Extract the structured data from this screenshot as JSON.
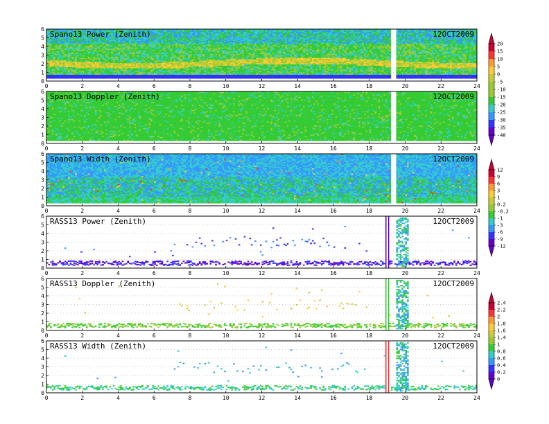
{
  "date_label": "12OCT2009",
  "x_ticks": [
    "0",
    "2",
    "4",
    "6",
    "8",
    "10",
    "12",
    "14",
    "16",
    "18",
    "20",
    "22",
    "24"
  ],
  "y_ticks": [
    "0",
    "1",
    "2",
    "3",
    "4",
    "5",
    "6"
  ],
  "colorbars": [
    {
      "ticks": [
        "20",
        "15",
        "10",
        "5",
        "0",
        "-5",
        "-10",
        "-15",
        "-20",
        "-25",
        "-30",
        "-35",
        "-40"
      ]
    },
    {
      "ticks": [
        "12",
        "9",
        "6",
        "3",
        "1",
        "0.2",
        "-0.2",
        "-1",
        "-3",
        "-6",
        "-9",
        "-12"
      ]
    },
    {
      "ticks": [
        "2.4",
        "2.2",
        "2",
        "1.8",
        "1.6",
        "1.4",
        "1",
        "0.8",
        "0.6",
        "0.4",
        "0.2",
        "0"
      ]
    }
  ],
  "colors": {
    "palette": [
      "#6600cc",
      "#3333ff",
      "#3399ff",
      "#33cccc",
      "#33cc33",
      "#99cc33",
      "#cccc33",
      "#ffcc33",
      "#ff9933",
      "#ff3333",
      "#cc0033"
    ]
  },
  "chart_data": [
    {
      "type": "heatmap",
      "title": "Spano13 Power (Zenith)",
      "xlim": [
        0,
        24
      ],
      "ylim": [
        0,
        6
      ],
      "colorbar": 0
    },
    {
      "type": "heatmap",
      "title": "Spano13 Doppler (Zenith)",
      "xlim": [
        0,
        24
      ],
      "ylim": [
        0,
        6
      ],
      "colorbar": 0
    },
    {
      "type": "heatmap",
      "title": "Spano13 Width (Zenith)",
      "xlim": [
        0,
        24
      ],
      "ylim": [
        0,
        6
      ],
      "colorbar": 1
    },
    {
      "type": "heatmap",
      "title": "RASS13 Power (Zenith)",
      "xlim": [
        0,
        24
      ],
      "ylim": [
        0,
        6
      ],
      "colorbar": 1
    },
    {
      "type": "heatmap",
      "title": "RASS13 Doppler (Zenith)",
      "xlim": [
        0,
        24
      ],
      "ylim": [
        0,
        6
      ],
      "colorbar": 2
    },
    {
      "type": "heatmap",
      "title": "RASS13 Width (Zenith)",
      "xlim": [
        0,
        24
      ],
      "ylim": [
        0,
        6
      ],
      "colorbar": 2
    }
  ]
}
